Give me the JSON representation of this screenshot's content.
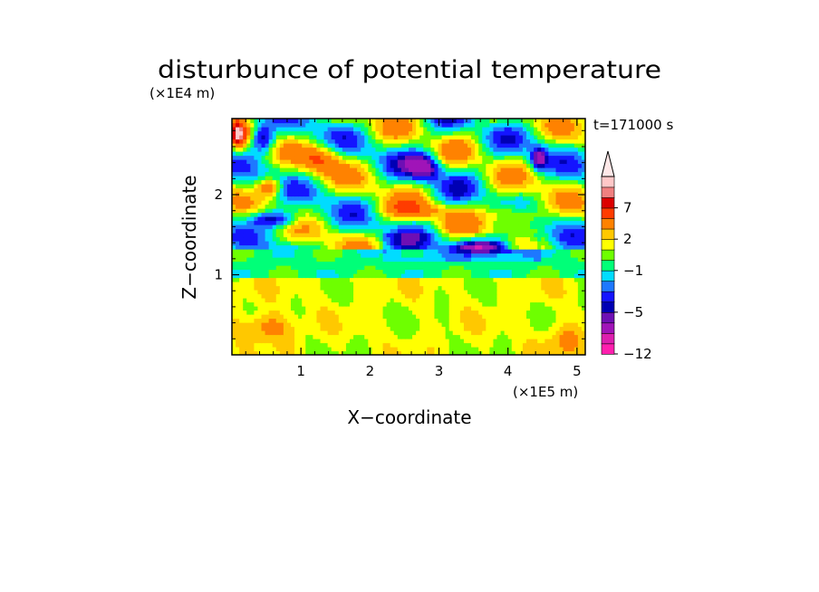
{
  "chart_data": {
    "type": "heatmap",
    "title": "disturbunce of potential temperature",
    "time_label": "t=171000 s",
    "xlabel": "X−coordinate",
    "ylabel": "Z−coordinate",
    "x_unit_label": "(×1E5 m)",
    "y_unit_label": "(×1E4 m)",
    "xlim": [
      0,
      5.12
    ],
    "ylim": [
      0,
      2.95
    ],
    "x_ticks": [
      1,
      2,
      3,
      4,
      5
    ],
    "y_ticks": [
      1,
      2
    ],
    "x_tick_labels": [
      "1",
      "2",
      "3",
      "4",
      "5"
    ],
    "y_tick_labels": [
      "1",
      "2"
    ],
    "colorbar": {
      "levels": [
        -12,
        -10,
        -8,
        -6,
        -5,
        -4,
        -3,
        -2,
        -1,
        0,
        1,
        2,
        3,
        5,
        7,
        8,
        9,
        10
      ],
      "tick_labels": [
        "7",
        "2",
        "−1",
        "−5",
        "−12"
      ],
      "tick_values": [
        7,
        2,
        -1,
        -5,
        -12
      ],
      "colors": [
        "#ff1fae",
        "#dd1fae",
        "#a014b8",
        "#6e0fb4",
        "#0000b4",
        "#1414ff",
        "#1e78ff",
        "#00dcff",
        "#00ff78",
        "#6eff00",
        "#ffff00",
        "#ffc800",
        "#ff8200",
        "#ff3c00",
        "#dc0000",
        "#f08080",
        "#ffc8c8"
      ],
      "extend": "max"
    },
    "features": [
      {
        "x": 2.8,
        "z": 2.35,
        "value": -6,
        "sx": 0.18,
        "sz": 0.12
      },
      {
        "x": 0.45,
        "z": 2.7,
        "value": -6,
        "sx": 0.12,
        "sz": 0.12
      },
      {
        "x": 0.62,
        "z": 1.7,
        "value": -6,
        "sx": 0.25,
        "sz": 0.08
      },
      {
        "x": 3.7,
        "z": 1.35,
        "value": -6,
        "sx": 0.3,
        "sz": 0.06
      },
      {
        "x": 4.45,
        "z": 2.45,
        "value": -6,
        "sx": 0.08,
        "sz": 0.1
      },
      {
        "x": 0.55,
        "z": 2.1,
        "value": 6,
        "sx": 0.12,
        "sz": 0.08
      },
      {
        "x": 0.1,
        "z": 2.75,
        "value": 7,
        "sx": 0.08,
        "sz": 0.12
      },
      {
        "x": 1.3,
        "z": 2.45,
        "value": 4,
        "sx": 0.2,
        "sz": 0.12
      },
      {
        "x": 2.7,
        "z": 1.8,
        "value": 3,
        "sx": 0.4,
        "sz": 0.08
      },
      {
        "x": 4.1,
        "z": 1.75,
        "value": 5,
        "sx": 0.25,
        "sz": 0.1
      },
      {
        "x": 0.5,
        "z": 0.35,
        "value": 3,
        "sx": 0.25,
        "sz": 0.12
      },
      {
        "x": 4.8,
        "z": 0.2,
        "value": 2,
        "sx": 0.2,
        "sz": 0.15
      }
    ]
  }
}
